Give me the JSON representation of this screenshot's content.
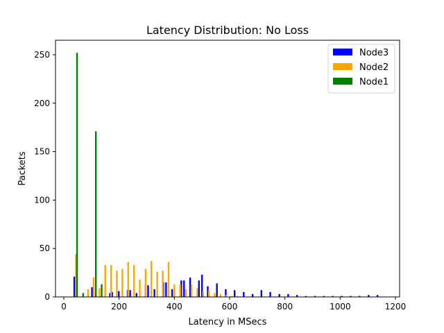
{
  "chart_data": {
    "type": "bar",
    "title": "Latency Distribution: No Loss",
    "xlabel": "Latency in MSecs",
    "ylabel": "Packets",
    "xlim": [
      -30,
      1215
    ],
    "ylim": [
      0,
      265
    ],
    "xticks": [
      0,
      200,
      400,
      600,
      800,
      1000,
      1200
    ],
    "yticks": [
      0,
      50,
      100,
      150,
      200,
      250
    ],
    "grid": false,
    "legend_position": "top-right",
    "bin_width_ms": 32.3,
    "series": [
      {
        "name": "Node3",
        "color": "#0000ff",
        "points": [
          [
            38,
            21
          ],
          [
            102,
            10
          ],
          [
            167,
            4
          ],
          [
            199,
            6
          ],
          [
            231,
            7
          ],
          [
            263,
            4
          ],
          [
            296,
            13
          ],
          [
            328,
            8
          ],
          [
            360,
            15
          ],
          [
            392,
            8
          ],
          [
            425,
            17
          ],
          [
            457,
            20
          ],
          [
            489,
            17
          ],
          [
            521,
            11
          ],
          [
            554,
            14
          ],
          [
            586,
            8
          ],
          [
            618,
            7
          ],
          [
            651,
            5
          ],
          [
            683,
            3
          ],
          [
            715,
            7
          ],
          [
            747,
            5
          ],
          [
            780,
            3
          ],
          [
            812,
            3
          ],
          [
            844,
            2
          ],
          [
            876,
            1
          ],
          [
            909,
            1
          ],
          [
            941,
            1
          ],
          [
            973,
            1
          ],
          [
            1006,
            1
          ],
          [
            1038,
            1
          ],
          [
            1070,
            1
          ],
          [
            1103,
            2
          ],
          [
            1135,
            2
          ],
          [
            175,
            5
          ],
          [
            240,
            7
          ],
          [
            305,
            12
          ],
          [
            370,
            15
          ],
          [
            435,
            17
          ],
          [
            500,
            23
          ]
        ]
      },
      {
        "name": "Node2",
        "color": "#ffa500",
        "points": [
          [
            44,
            44
          ],
          [
            70,
            0
          ],
          [
            88,
            8
          ],
          [
            108,
            20
          ],
          [
            129,
            9
          ],
          [
            150,
            33
          ],
          [
            171,
            33
          ],
          [
            192,
            27
          ],
          [
            212,
            29
          ],
          [
            233,
            36
          ],
          [
            254,
            33
          ],
          [
            275,
            18
          ],
          [
            296,
            29
          ],
          [
            317,
            37
          ],
          [
            338,
            26
          ],
          [
            358,
            27
          ],
          [
            379,
            36
          ],
          [
            400,
            13
          ],
          [
            421,
            13
          ],
          [
            442,
            8
          ],
          [
            462,
            13
          ],
          [
            483,
            9
          ],
          [
            504,
            6
          ],
          [
            525,
            7
          ],
          [
            546,
            4
          ],
          [
            567,
            3
          ],
          [
            588,
            2
          ],
          [
            608,
            1
          ],
          [
            629,
            1
          ]
        ]
      },
      {
        "name": "Node1",
        "color": "#008000",
        "points": [
          [
            48,
            252
          ],
          [
            70,
            4
          ],
          [
            116,
            171
          ],
          [
            137,
            13
          ]
        ]
      }
    ]
  }
}
